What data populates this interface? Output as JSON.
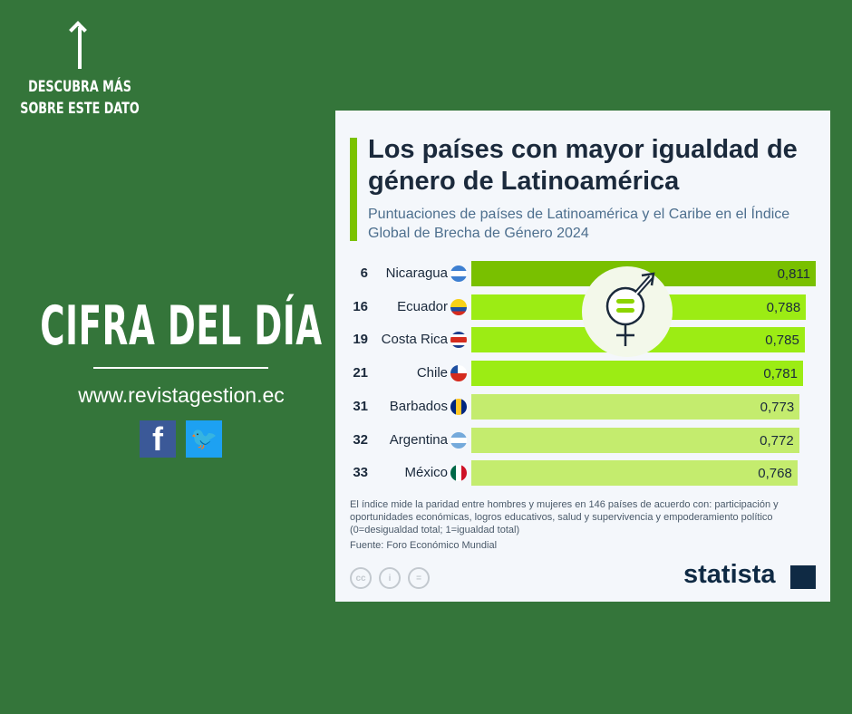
{
  "left": {
    "more": "DESCUBRA MÁS SOBRE ESTE DATO",
    "headline": "CIFRA DEL DÍA",
    "url": "www.revistagestion.ec",
    "facebook": "f",
    "twitter": "🐦"
  },
  "chart_data": {
    "type": "bar",
    "title": "Los países con mayor igualdad de género de Latinoamérica",
    "subtitle": "Puntuaciones de países de Latinoamérica y el Caribe en el Índice Global de Brecha de Género 2024",
    "categories": [
      "Nicaragua",
      "Ecuador",
      "Costa Rica",
      "Chile",
      "Barbados",
      "Argentina",
      "México"
    ],
    "ranks": [
      "6",
      "16",
      "19",
      "21",
      "31",
      "32",
      "33"
    ],
    "values": [
      0.811,
      0.788,
      0.785,
      0.781,
      0.773,
      0.772,
      0.768
    ],
    "labels": [
      "0,811",
      "0,788",
      "0,785",
      "0,781",
      "0,773",
      "0,772",
      "0,768"
    ],
    "xlim": [
      0,
      0.811
    ],
    "colors": [
      "#79c000",
      "#9cec14",
      "#9cec14",
      "#9cec14",
      "#c4ec6e",
      "#c4ec6e",
      "#c4ec6e"
    ],
    "note": "El índice mide la paridad entre hombres y mujeres en 146 países de acuerdo con: participación y oportunidades económicas, logros educativos, salud y supervivencia y empoderamiento político (0=desigualdad total; 1=igualdad total)",
    "source": "Fuente: Foro Económico Mundial"
  },
  "footer": {
    "cc": "cc",
    "by": "i",
    "nd": "=",
    "logo": "statista"
  }
}
